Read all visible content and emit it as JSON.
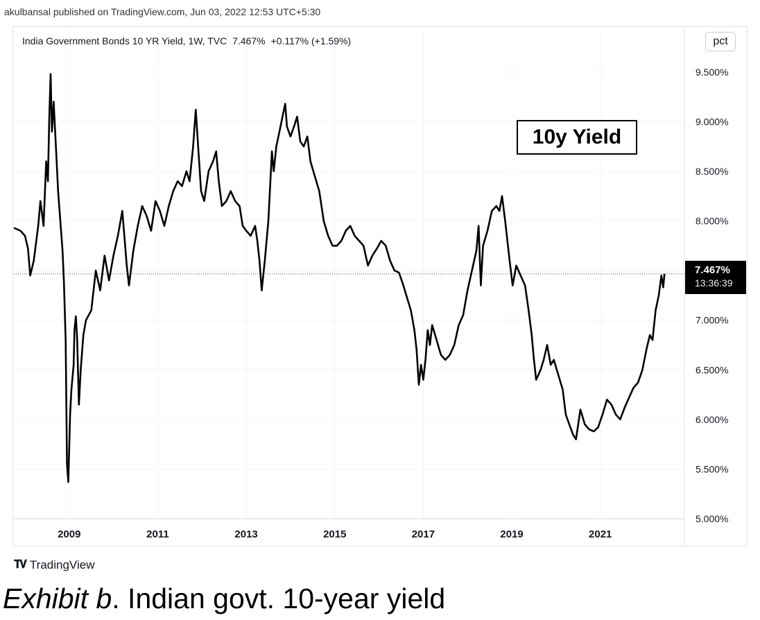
{
  "publisher": "akulbansal published on TradingView.com, Jun 03, 2022 12:53 UTC+5:30",
  "legend": {
    "symbol": "India Government Bonds 10 YR Yield, 1W, TVC",
    "last": "7.467%",
    "change": "+0.117% (+1.59%)"
  },
  "unit": "pct",
  "annotation": "10y Yield",
  "price_label": {
    "value": "7.467%",
    "countdown": "13:36:39"
  },
  "logo": "TradingView",
  "caption": {
    "italic": "Exhibit b",
    "rest": ". Indian govt. 10-year yield"
  },
  "colors": {
    "line": "#000000",
    "grid": "#f0f3fa",
    "axis_text": "#131722"
  },
  "chart_data": {
    "type": "line",
    "title": "",
    "xlabel": "",
    "ylabel": "",
    "xlim": [
      2007.75,
      2022.9
    ],
    "ylim": [
      5.0,
      9.75
    ],
    "x_ticks": [
      2009,
      2011,
      2013,
      2015,
      2017,
      2019,
      2021
    ],
    "y_ticks": [
      5.0,
      5.5,
      6.0,
      6.5,
      7.0,
      7.5,
      8.0,
      8.5,
      9.0,
      9.5
    ],
    "y_tick_labels": [
      "5.000%",
      "5.500%",
      "6.000%",
      "6.500%",
      "7.000%",
      "7.500%",
      "8.000%",
      "8.500%",
      "9.000%",
      "9.500%"
    ],
    "x_tick_labels": [
      "2009",
      "2011",
      "2013",
      "2015",
      "2017",
      "2019",
      "2021"
    ],
    "last_value": 7.467,
    "series": [
      {
        "points": [
          [
            2007.75,
            7.93
          ],
          [
            2007.9,
            7.9
          ],
          [
            2008.0,
            7.85
          ],
          [
            2008.07,
            7.72
          ],
          [
            2008.12,
            7.45
          ],
          [
            2008.2,
            7.6
          ],
          [
            2008.3,
            7.95
          ],
          [
            2008.35,
            8.2
          ],
          [
            2008.42,
            7.95
          ],
          [
            2008.48,
            8.6
          ],
          [
            2008.52,
            8.4
          ],
          [
            2008.55,
            9.05
          ],
          [
            2008.58,
            9.48
          ],
          [
            2008.61,
            8.9
          ],
          [
            2008.65,
            9.2
          ],
          [
            2008.7,
            8.75
          ],
          [
            2008.75,
            8.3
          ],
          [
            2008.8,
            8.0
          ],
          [
            2008.85,
            7.7
          ],
          [
            2008.88,
            7.4
          ],
          [
            2008.92,
            6.8
          ],
          [
            2008.95,
            5.55
          ],
          [
            2008.98,
            5.37
          ],
          [
            2009.02,
            6.05
          ],
          [
            2009.05,
            6.3
          ],
          [
            2009.1,
            6.55
          ],
          [
            2009.12,
            6.9
          ],
          [
            2009.15,
            7.04
          ],
          [
            2009.18,
            6.8
          ],
          [
            2009.22,
            6.15
          ],
          [
            2009.26,
            6.5
          ],
          [
            2009.32,
            6.85
          ],
          [
            2009.38,
            7.0
          ],
          [
            2009.5,
            7.1
          ],
          [
            2009.6,
            7.5
          ],
          [
            2009.7,
            7.3
          ],
          [
            2009.8,
            7.65
          ],
          [
            2009.9,
            7.4
          ],
          [
            2010.0,
            7.65
          ],
          [
            2010.1,
            7.85
          ],
          [
            2010.2,
            8.1
          ],
          [
            2010.3,
            7.55
          ],
          [
            2010.35,
            7.35
          ],
          [
            2010.45,
            7.7
          ],
          [
            2010.55,
            7.95
          ],
          [
            2010.65,
            8.15
          ],
          [
            2010.75,
            8.05
          ],
          [
            2010.85,
            7.9
          ],
          [
            2010.95,
            8.2
          ],
          [
            2011.05,
            8.1
          ],
          [
            2011.15,
            7.95
          ],
          [
            2011.25,
            8.15
          ],
          [
            2011.35,
            8.3
          ],
          [
            2011.45,
            8.4
          ],
          [
            2011.55,
            8.35
          ],
          [
            2011.65,
            8.5
          ],
          [
            2011.72,
            8.4
          ],
          [
            2011.8,
            8.75
          ],
          [
            2011.86,
            9.12
          ],
          [
            2011.92,
            8.7
          ],
          [
            2011.98,
            8.3
          ],
          [
            2012.05,
            8.2
          ],
          [
            2012.15,
            8.5
          ],
          [
            2012.25,
            8.6
          ],
          [
            2012.32,
            8.7
          ],
          [
            2012.38,
            8.4
          ],
          [
            2012.45,
            8.15
          ],
          [
            2012.55,
            8.2
          ],
          [
            2012.65,
            8.3
          ],
          [
            2012.75,
            8.2
          ],
          [
            2012.85,
            8.15
          ],
          [
            2012.92,
            7.95
          ],
          [
            2013.0,
            7.9
          ],
          [
            2013.1,
            7.85
          ],
          [
            2013.2,
            7.95
          ],
          [
            2013.25,
            7.8
          ],
          [
            2013.3,
            7.6
          ],
          [
            2013.35,
            7.3
          ],
          [
            2013.42,
            7.6
          ],
          [
            2013.5,
            8.0
          ],
          [
            2013.58,
            8.7
          ],
          [
            2013.62,
            8.5
          ],
          [
            2013.68,
            8.75
          ],
          [
            2013.75,
            8.9
          ],
          [
            2013.82,
            9.05
          ],
          [
            2013.88,
            9.18
          ],
          [
            2013.92,
            8.95
          ],
          [
            2014.0,
            8.85
          ],
          [
            2014.08,
            8.95
          ],
          [
            2014.15,
            9.05
          ],
          [
            2014.22,
            8.8
          ],
          [
            2014.3,
            8.75
          ],
          [
            2014.38,
            8.85
          ],
          [
            2014.45,
            8.6
          ],
          [
            2014.55,
            8.45
          ],
          [
            2014.65,
            8.3
          ],
          [
            2014.75,
            8.0
          ],
          [
            2014.85,
            7.85
          ],
          [
            2014.95,
            7.75
          ],
          [
            2015.05,
            7.75
          ],
          [
            2015.15,
            7.8
          ],
          [
            2015.25,
            7.9
          ],
          [
            2015.35,
            7.95
          ],
          [
            2015.45,
            7.85
          ],
          [
            2015.55,
            7.8
          ],
          [
            2015.65,
            7.75
          ],
          [
            2015.75,
            7.55
          ],
          [
            2015.85,
            7.65
          ],
          [
            2015.95,
            7.72
          ],
          [
            2016.05,
            7.8
          ],
          [
            2016.15,
            7.75
          ],
          [
            2016.25,
            7.6
          ],
          [
            2016.35,
            7.5
          ],
          [
            2016.45,
            7.48
          ],
          [
            2016.55,
            7.35
          ],
          [
            2016.65,
            7.2
          ],
          [
            2016.72,
            7.1
          ],
          [
            2016.8,
            6.9
          ],
          [
            2016.85,
            6.7
          ],
          [
            2016.9,
            6.35
          ],
          [
            2016.95,
            6.55
          ],
          [
            2017.0,
            6.4
          ],
          [
            2017.05,
            6.6
          ],
          [
            2017.1,
            6.9
          ],
          [
            2017.15,
            6.75
          ],
          [
            2017.2,
            6.95
          ],
          [
            2017.3,
            6.8
          ],
          [
            2017.4,
            6.65
          ],
          [
            2017.5,
            6.6
          ],
          [
            2017.6,
            6.65
          ],
          [
            2017.7,
            6.75
          ],
          [
            2017.8,
            6.95
          ],
          [
            2017.9,
            7.05
          ],
          [
            2018.0,
            7.3
          ],
          [
            2018.1,
            7.5
          ],
          [
            2018.2,
            7.7
          ],
          [
            2018.25,
            7.95
          ],
          [
            2018.3,
            7.35
          ],
          [
            2018.35,
            7.75
          ],
          [
            2018.45,
            7.9
          ],
          [
            2018.55,
            8.1
          ],
          [
            2018.65,
            8.15
          ],
          [
            2018.72,
            8.1
          ],
          [
            2018.78,
            8.25
          ],
          [
            2018.85,
            8.0
          ],
          [
            2018.95,
            7.6
          ],
          [
            2019.02,
            7.35
          ],
          [
            2019.1,
            7.55
          ],
          [
            2019.2,
            7.45
          ],
          [
            2019.3,
            7.35
          ],
          [
            2019.38,
            7.1
          ],
          [
            2019.45,
            6.85
          ],
          [
            2019.5,
            6.6
          ],
          [
            2019.55,
            6.4
          ],
          [
            2019.65,
            6.5
          ],
          [
            2019.72,
            6.6
          ],
          [
            2019.8,
            6.75
          ],
          [
            2019.88,
            6.55
          ],
          [
            2019.95,
            6.6
          ],
          [
            2020.05,
            6.45
          ],
          [
            2020.15,
            6.3
          ],
          [
            2020.22,
            6.05
          ],
          [
            2020.3,
            5.95
          ],
          [
            2020.38,
            5.85
          ],
          [
            2020.45,
            5.8
          ],
          [
            2020.55,
            6.1
          ],
          [
            2020.65,
            5.95
          ],
          [
            2020.75,
            5.9
          ],
          [
            2020.85,
            5.88
          ],
          [
            2020.95,
            5.92
          ],
          [
            2021.05,
            6.05
          ],
          [
            2021.15,
            6.2
          ],
          [
            2021.25,
            6.15
          ],
          [
            2021.35,
            6.05
          ],
          [
            2021.45,
            6.0
          ],
          [
            2021.55,
            6.12
          ],
          [
            2021.65,
            6.22
          ],
          [
            2021.75,
            6.32
          ],
          [
            2021.85,
            6.37
          ],
          [
            2021.95,
            6.5
          ],
          [
            2022.05,
            6.72
          ],
          [
            2022.12,
            6.85
          ],
          [
            2022.18,
            6.8
          ],
          [
            2022.25,
            7.1
          ],
          [
            2022.32,
            7.25
          ],
          [
            2022.38,
            7.45
          ],
          [
            2022.42,
            7.33
          ],
          [
            2022.45,
            7.467
          ]
        ]
      }
    ]
  }
}
